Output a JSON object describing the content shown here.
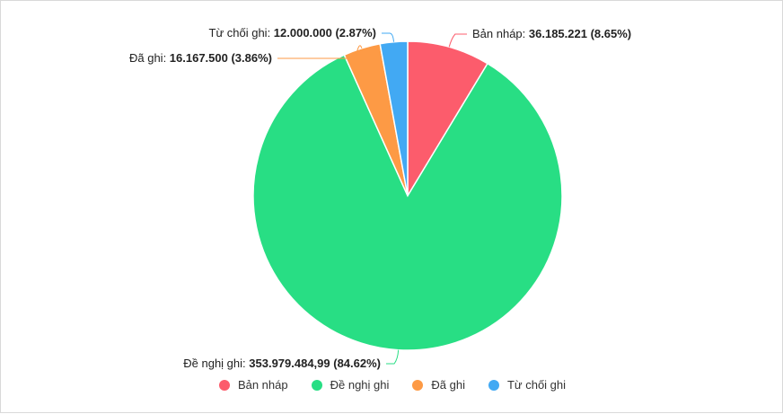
{
  "chart_data": {
    "type": "pie",
    "title": "",
    "start_angle_deg": 0,
    "direction": "clockwise",
    "legend_position": "bottom",
    "slices": [
      {
        "name": "Bản nháp",
        "value": 36185221,
        "value_label": "36.185.221",
        "percent_label": "(8.65%)",
        "color": "#fc5c6c"
      },
      {
        "name": "Đề nghị ghi",
        "value": 353979484.99,
        "value_label": "353.979.484,99",
        "percent_label": "(84.62%)",
        "color": "#28de84"
      },
      {
        "name": "Đã ghi",
        "value": 16167500,
        "value_label": "16.167.500",
        "percent_label": "(3.86%)",
        "color": "#fd9a45"
      },
      {
        "name": "Từ chối ghi",
        "value": 12000000,
        "value_label": "12.000.000",
        "percent_label": "(2.87%)",
        "color": "#42a9f3"
      }
    ]
  }
}
